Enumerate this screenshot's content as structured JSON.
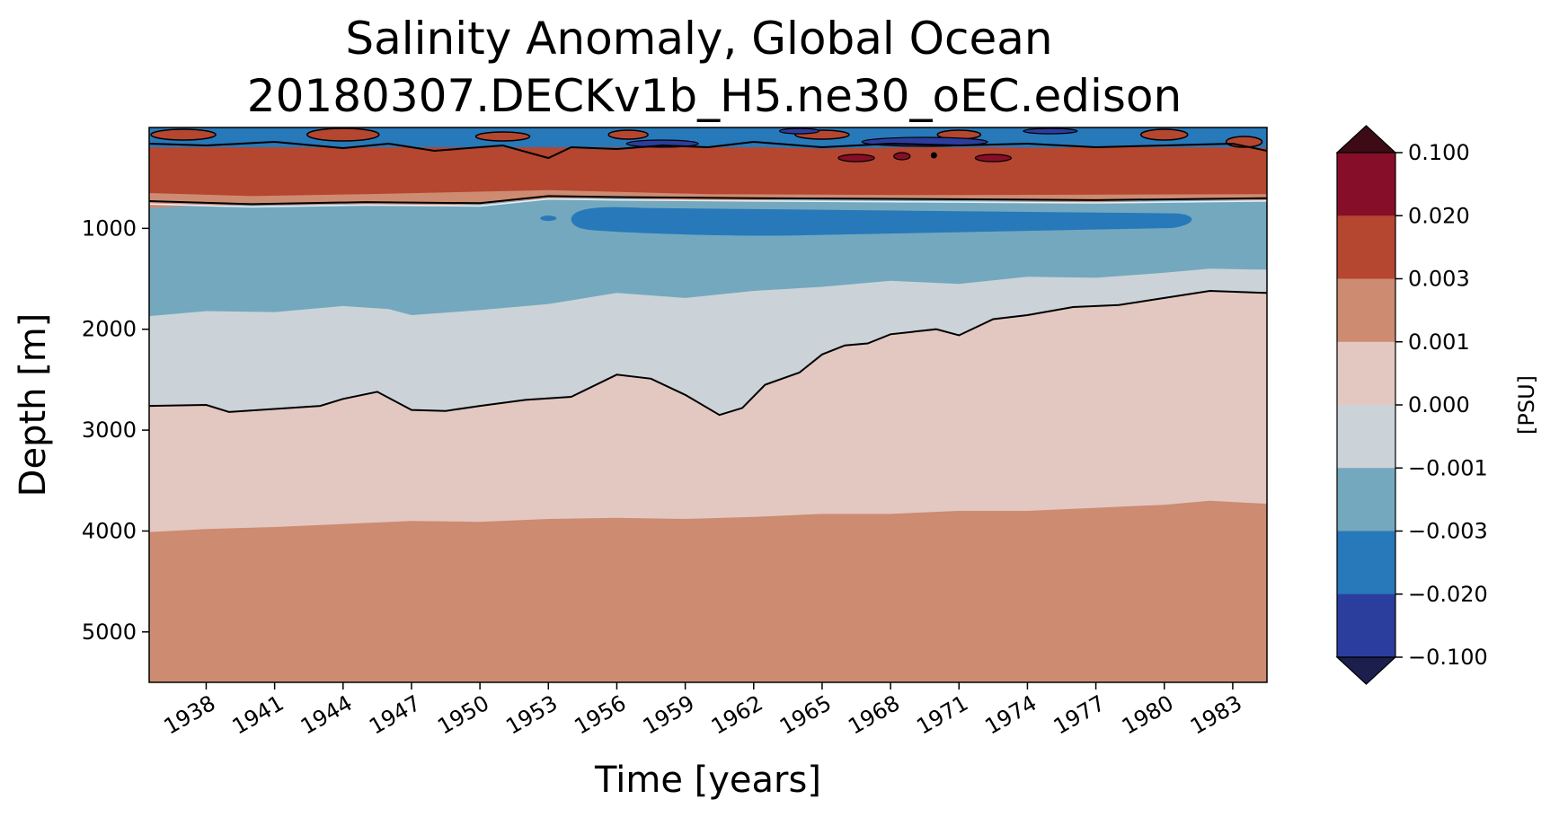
{
  "chart_data": {
    "type": "contourf",
    "title_line1": "Salinity Anomaly, Global Ocean",
    "title_line2": "20180307.DECKv1b_H5.ne30_oEC.edison",
    "xlabel": "Time [years]",
    "ylabel": "Depth [m]",
    "colorbar_label": "[PSU]",
    "xlim": [
      1935.5,
      1984.5
    ],
    "ylim": [
      5500,
      0
    ],
    "x_ticks": [
      1938,
      1941,
      1944,
      1947,
      1950,
      1953,
      1956,
      1959,
      1962,
      1965,
      1968,
      1971,
      1974,
      1977,
      1980,
      1983
    ],
    "x_tick_labels": [
      "1938",
      "1941",
      "1944",
      "1947",
      "1950",
      "1953",
      "1956",
      "1959",
      "1962",
      "1965",
      "1968",
      "1971",
      "1974",
      "1977",
      "1980",
      "1983"
    ],
    "y_ticks": [
      1000,
      2000,
      3000,
      4000,
      5000
    ],
    "y_tick_labels": [
      "1000",
      "2000",
      "3000",
      "4000",
      "5000"
    ],
    "colorbar_ticks": [
      "0.100",
      "0.020",
      "0.003",
      "0.001",
      "0.000",
      "−0.001",
      "−0.003",
      "−0.020",
      "−0.100"
    ],
    "colorbar_colors": [
      "#3d0b16",
      "#870e29",
      "#b54630",
      "#cd8b72",
      "#e3c8c1",
      "#cbd3d8",
      "#74a8be",
      "#2779b9",
      "#2b3e9e",
      "#1c1f4e"
    ],
    "bands": [
      {
        "name": "deep-positive",
        "color": "#cd8b72",
        "level_range": "0.001 to 0.003",
        "top_depth": [
          [
            1935.5,
            4010
          ],
          [
            1938,
            3980
          ],
          [
            1941,
            3960
          ],
          [
            1944,
            3930
          ],
          [
            1947,
            3900
          ],
          [
            1950,
            3910
          ],
          [
            1953,
            3880
          ],
          [
            1956,
            3870
          ],
          [
            1959,
            3880
          ],
          [
            1962,
            3860
          ],
          [
            1965,
            3830
          ],
          [
            1968,
            3830
          ],
          [
            1971,
            3800
          ],
          [
            1974,
            3800
          ],
          [
            1977,
            3770
          ],
          [
            1980,
            3740
          ],
          [
            1982,
            3700
          ],
          [
            1984.5,
            3730
          ]
        ]
      },
      {
        "name": "mid-positive",
        "color": "#e3c8c1",
        "level_range": "0.000 to 0.001",
        "top_depth": [
          [
            1935.5,
            2760
          ],
          [
            1938,
            2750
          ],
          [
            1939,
            2820
          ],
          [
            1941,
            2790
          ],
          [
            1943,
            2760
          ],
          [
            1944,
            2690
          ],
          [
            1945.5,
            2620
          ],
          [
            1947,
            2800
          ],
          [
            1948.5,
            2810
          ],
          [
            1950,
            2760
          ],
          [
            1952,
            2700
          ],
          [
            1954,
            2670
          ],
          [
            1956,
            2450
          ],
          [
            1957.5,
            2490
          ],
          [
            1959,
            2650
          ],
          [
            1960.5,
            2850
          ],
          [
            1961.5,
            2780
          ],
          [
            1962.5,
            2550
          ],
          [
            1964,
            2430
          ],
          [
            1965,
            2250
          ],
          [
            1966,
            2160
          ],
          [
            1967,
            2140
          ],
          [
            1968,
            2050
          ],
          [
            1970,
            2000
          ],
          [
            1971,
            2060
          ],
          [
            1972.5,
            1900
          ],
          [
            1974,
            1860
          ],
          [
            1976,
            1780
          ],
          [
            1978,
            1760
          ],
          [
            1980,
            1690
          ],
          [
            1982,
            1620
          ],
          [
            1984.5,
            1640
          ]
        ]
      },
      {
        "name": "slightly-negative",
        "color": "#cbd3d8",
        "level_range": "-0.001 to 0.000",
        "top_depth": [
          [
            1935.5,
            1870
          ],
          [
            1938,
            1820
          ],
          [
            1941,
            1830
          ],
          [
            1943,
            1790
          ],
          [
            1944,
            1770
          ],
          [
            1946,
            1800
          ],
          [
            1947,
            1860
          ],
          [
            1950,
            1810
          ],
          [
            1953,
            1750
          ],
          [
            1956,
            1640
          ],
          [
            1959,
            1690
          ],
          [
            1962,
            1620
          ],
          [
            1965,
            1580
          ],
          [
            1968,
            1520
          ],
          [
            1971,
            1550
          ],
          [
            1974,
            1480
          ],
          [
            1977,
            1490
          ],
          [
            1980,
            1440
          ],
          [
            1982,
            1400
          ],
          [
            1984.5,
            1410
          ]
        ]
      },
      {
        "name": "negative",
        "color": "#74a8be",
        "level_range": "-0.003 to -0.001",
        "top_depth": [
          [
            1935.5,
            800
          ],
          [
            1938,
            770
          ],
          [
            1941,
            770
          ],
          [
            1944,
            760
          ],
          [
            1947,
            780
          ],
          [
            1950,
            760
          ],
          [
            1953,
            700
          ],
          [
            1956,
            700
          ],
          [
            1959,
            720
          ],
          [
            1962,
            720
          ],
          [
            1965,
            710
          ],
          [
            1968,
            710
          ],
          [
            1971,
            720
          ],
          [
            1974,
            730
          ],
          [
            1977,
            740
          ],
          [
            1980,
            720
          ],
          [
            1984.5,
            720
          ]
        ]
      },
      {
        "name": "upper-positive",
        "color": "#b54630",
        "level_range": "0.003 to 0.020",
        "top_depth": [
          [
            1935.5,
            190
          ],
          [
            1940,
            180
          ],
          [
            1945,
            200
          ],
          [
            1950,
            160
          ],
          [
            1955,
            190
          ],
          [
            1960,
            180
          ],
          [
            1965,
            210
          ],
          [
            1970,
            190
          ],
          [
            1975,
            200
          ],
          [
            1980,
            180
          ],
          [
            1984.5,
            200
          ]
        ]
      }
    ],
    "lower_edge_extra": [
      {
        "name": "pinkish-rim",
        "color": "#cd8b72",
        "depths": [
          [
            1935.5,
            650
          ],
          [
            1940,
            680
          ],
          [
            1945,
            660
          ],
          [
            1953,
            620
          ],
          [
            1960,
            660
          ],
          [
            1970,
            670
          ],
          [
            1984.5,
            660
          ]
        ]
      }
    ],
    "mid_blue_patches": [
      {
        "name": "strong-negative-patch",
        "color": "#2779b9",
        "x_range": [
          1954,
          1981.5
        ],
        "depth_range": [
          780,
          1050
        ]
      }
    ],
    "zero_contour_lines": [
      {
        "name": "shallow-zero-contour",
        "points": [
          [
            1935.5,
            730
          ],
          [
            1940,
            760
          ],
          [
            1945,
            740
          ],
          [
            1950,
            750
          ],
          [
            1953,
            680
          ],
          [
            1956,
            690
          ],
          [
            1962,
            700
          ],
          [
            1970,
            710
          ],
          [
            1977,
            720
          ],
          [
            1984.5,
            700
          ]
        ]
      },
      {
        "name": "deep-zero-contour",
        "ref": "mid-positive"
      }
    ]
  }
}
